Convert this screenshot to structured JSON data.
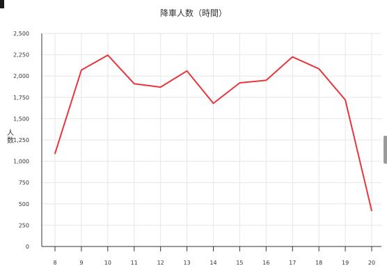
{
  "chart_data": {
    "type": "line",
    "title": "降車人数（時間）",
    "xlabel": "",
    "ylabel": "人数",
    "categories": [
      "8",
      "9",
      "10",
      "11",
      "12",
      "13",
      "14",
      "15",
      "16",
      "17",
      "18",
      "19",
      "20"
    ],
    "series": [
      {
        "values": [
          1090,
          2070,
          2245,
          1910,
          1870,
          2060,
          1680,
          1920,
          1950,
          2225,
          2085,
          1720,
          420
        ]
      }
    ],
    "ylim": [
      0,
      2500
    ],
    "y_ticks": [
      "0",
      "250",
      "500",
      "750",
      "1,000",
      "1,250",
      "1,500",
      "1,750",
      "2,000",
      "2,250",
      "2,500"
    ],
    "grid": true,
    "line_color": "#e8343a",
    "grid_color": "#e6e6e6"
  }
}
